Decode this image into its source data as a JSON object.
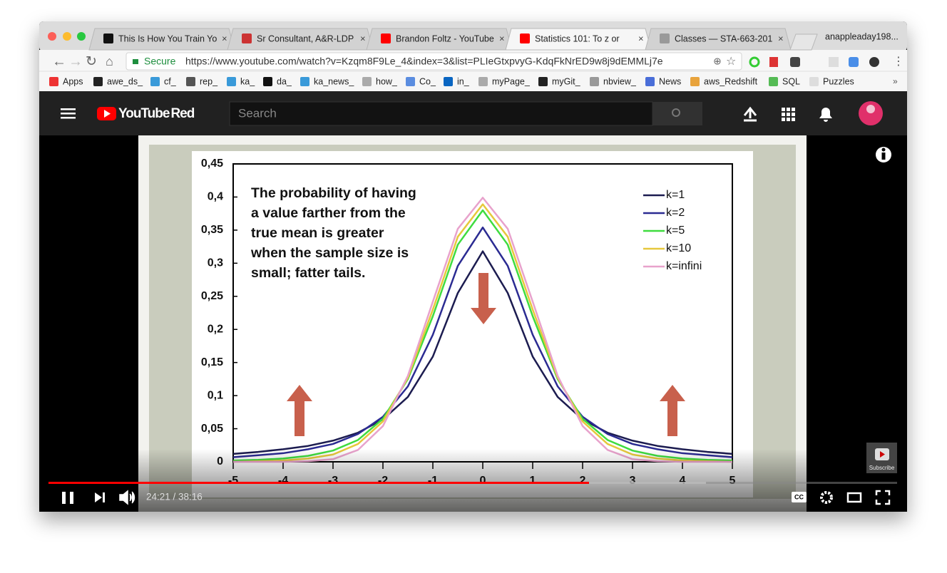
{
  "browser": {
    "tabs": [
      "This Is How You Train Yo",
      "Sr Consultant, A&R-LDP",
      "Brandon Foltz - YouTube",
      "Statistics 101: To z or",
      "Classes — STA-663-201"
    ],
    "profile": "anappleaday198...",
    "secure": "Secure",
    "url": "https://www.youtube.com/watch?v=Kzqm8F9Le_4&index=3&list=PLIeGtxpvyG-KdqFkNrED9w8j9dEMMLj7e",
    "bookmarks": [
      "Apps",
      "awe_ds_",
      "cf_",
      "rep_",
      "ka_",
      "da_",
      "ka_news_",
      "how_",
      "Co_",
      "in_",
      "myPage_",
      "myGit_",
      "nbview_",
      "News",
      "aws_Redshift",
      "SQL",
      "Puzzles"
    ]
  },
  "youtube": {
    "logo": "YouTube",
    "logo_suffix": "Red",
    "search": "Search"
  },
  "video": {
    "time": "24:21 / 38:16",
    "subscribe": "Subscribe",
    "cc": "CC",
    "chart": {
      "type": "line",
      "annotation": [
        "The probability of having",
        "a value farther from the",
        "true mean is greater",
        "when the sample size is",
        "small; fatter tails."
      ],
      "x": [
        -5,
        -4.5,
        -4,
        -3.5,
        -3,
        -2.5,
        -2,
        -1.5,
        -1,
        -0.5,
        0,
        0.5,
        1,
        1.5,
        2,
        2.5,
        3,
        3.5,
        4,
        4.5,
        5
      ],
      "series": [
        {
          "name": "k=1",
          "color": "#1c1c50",
          "values": [
            0.012,
            0.015,
            0.019,
            0.024,
            0.032,
            0.044,
            0.064,
            0.098,
            0.159,
            0.255,
            0.318,
            0.255,
            0.159,
            0.098,
            0.064,
            0.044,
            0.032,
            0.024,
            0.019,
            0.015,
            0.012
          ]
        },
        {
          "name": "k=2",
          "color": "#2b2b92",
          "values": [
            0.007,
            0.01,
            0.013,
            0.019,
            0.027,
            0.042,
            0.068,
            0.114,
            0.192,
            0.296,
            0.354,
            0.296,
            0.192,
            0.114,
            0.068,
            0.042,
            0.027,
            0.019,
            0.013,
            0.01,
            0.007
          ]
        },
        {
          "name": "k=5",
          "color": "#3fdc3f",
          "values": [
            0.002,
            0.003,
            0.005,
            0.009,
            0.017,
            0.033,
            0.065,
            0.125,
            0.22,
            0.328,
            0.38,
            0.328,
            0.22,
            0.125,
            0.065,
            0.033,
            0.017,
            0.009,
            0.005,
            0.003,
            0.002
          ]
        },
        {
          "name": "k=10",
          "color": "#e6c83c",
          "values": [
            0,
            0.001,
            0.002,
            0.005,
            0.011,
            0.027,
            0.061,
            0.127,
            0.23,
            0.34,
            0.389,
            0.34,
            0.23,
            0.127,
            0.061,
            0.027,
            0.011,
            0.005,
            0.002,
            0.001,
            0
          ]
        },
        {
          "name": "k=infini",
          "color": "#e8a2cc",
          "values": [
            0,
            0,
            0,
            0.001,
            0.004,
            0.018,
            0.054,
            0.13,
            0.242,
            0.352,
            0.399,
            0.352,
            0.242,
            0.13,
            0.054,
            0.018,
            0.004,
            0.001,
            0,
            0,
            0
          ]
        }
      ],
      "xlim": [
        -5,
        5
      ],
      "xticks": [
        -5,
        -4,
        -3,
        -2,
        -1,
        0,
        1,
        2,
        3,
        4,
        5
      ],
      "ylim": [
        0,
        0.45
      ],
      "yticks": [
        0,
        {
          "value": 0.05,
          "label": "0,05"
        },
        {
          "value": 0.1,
          "label": "0,1"
        },
        {
          "value": 0.15,
          "label": "0,15"
        },
        {
          "value": 0.2,
          "label": "0,2"
        },
        {
          "value": 0.25,
          "label": "0,25"
        },
        {
          "value": 0.3,
          "label": "0,3"
        },
        {
          "value": 0.35,
          "label": "0,35"
        },
        {
          "value": 0.4,
          "label": "0,4"
        },
        {
          "value": 0.45,
          "label": "0,45"
        }
      ]
    }
  }
}
